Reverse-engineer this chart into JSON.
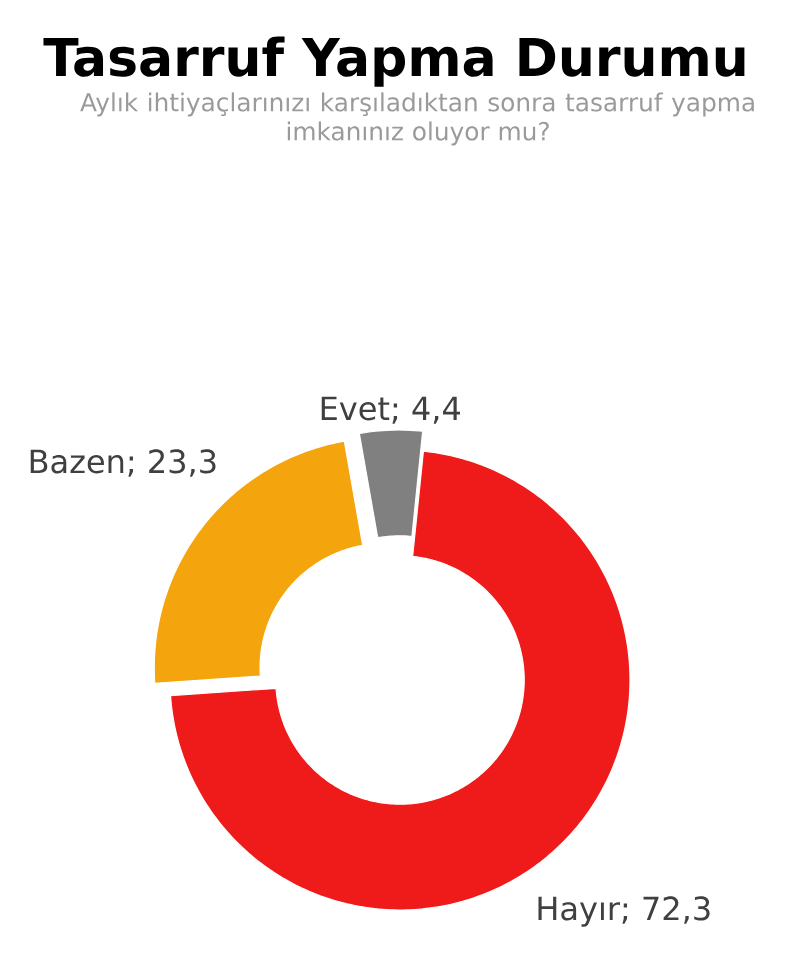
{
  "chart_data": {
    "type": "donut",
    "title": "Tasarruf Yapma Durumu",
    "subtitle": "Aylık ihtiyaçlarınızı karşıladıktan sonra tasarruf yapma imkanınız oluyor mu?",
    "categories": [
      "Evet",
      "Hayır",
      "Bazen"
    ],
    "values": [
      4.4,
      72.3,
      23.3
    ],
    "value_labels": [
      "; 4,4",
      "; 72,3",
      "; 23,3"
    ],
    "colors": [
      "#808080",
      "#ef1b1b",
      "#f4a40c"
    ]
  }
}
